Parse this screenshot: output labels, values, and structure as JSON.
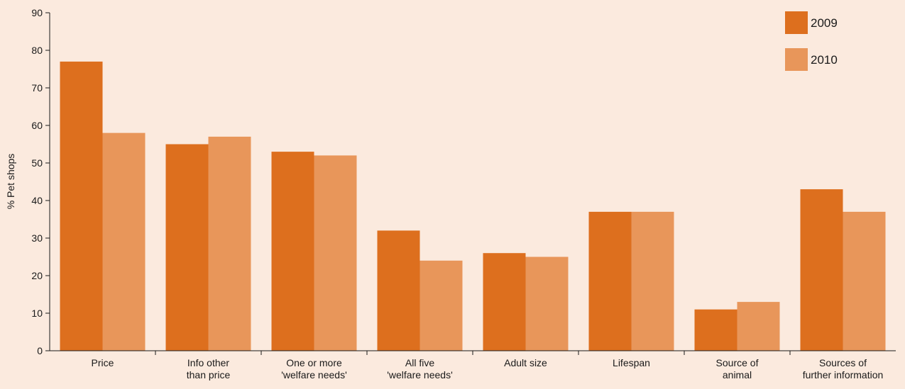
{
  "chart_data": {
    "type": "bar",
    "title": "",
    "xlabel": "",
    "ylabel": "% Pet shops",
    "ylim": [
      0,
      90
    ],
    "yticks": [
      0,
      10,
      20,
      30,
      40,
      50,
      60,
      70,
      80,
      90
    ],
    "grid": false,
    "legend_position": "top-right",
    "categories": [
      [
        "Price"
      ],
      [
        "Info other",
        "than price"
      ],
      [
        "One or more",
        "'welfare needs'"
      ],
      [
        "All five",
        "'welfare needs'"
      ],
      [
        "Adult size"
      ],
      [
        "Lifespan"
      ],
      [
        "Source of",
        "animal"
      ],
      [
        "Sources of",
        "further information"
      ]
    ],
    "series": [
      {
        "name": "2009",
        "color": "#dd6f1e",
        "values": [
          77,
          55,
          53,
          32,
          26,
          37,
          11,
          43
        ]
      },
      {
        "name": "2010",
        "color": "#e8965a",
        "values": [
          58,
          57,
          52,
          24,
          25,
          37,
          13,
          37
        ]
      }
    ]
  }
}
